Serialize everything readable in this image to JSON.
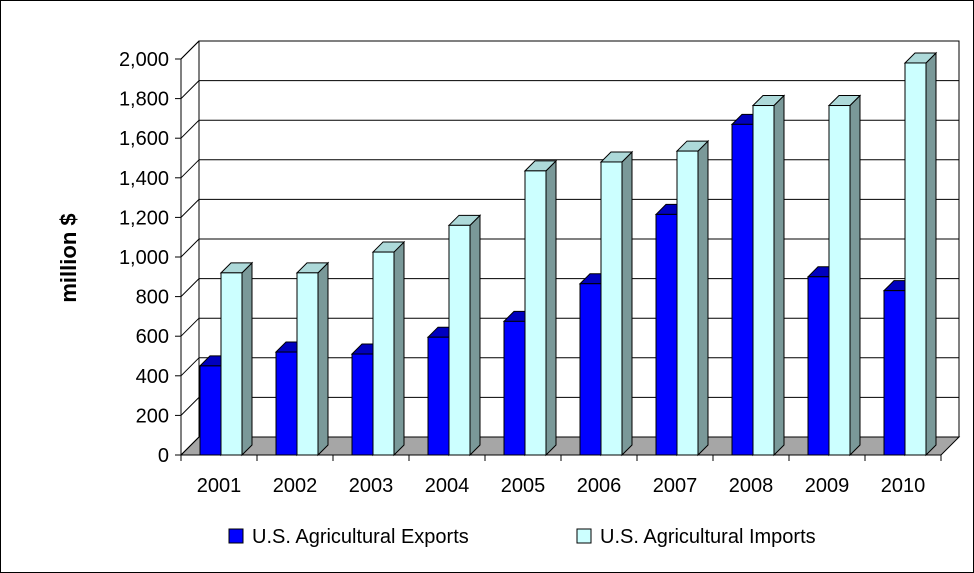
{
  "chart_data": {
    "type": "bar",
    "title": "",
    "xlabel": "",
    "ylabel": "million $",
    "ylim": [
      0,
      2000
    ],
    "y_ticks": [
      0,
      200,
      400,
      600,
      800,
      1000,
      1200,
      1400,
      1600,
      1800,
      2000
    ],
    "y_tick_labels": [
      "0",
      "200",
      "400",
      "600",
      "800",
      "1,000",
      "1,200",
      "1,400",
      "1,600",
      "1,800",
      "2,000"
    ],
    "grid": true,
    "legend_position": "bottom",
    "categories": [
      "2001",
      "2002",
      "2003",
      "2004",
      "2005",
      "2006",
      "2007",
      "2008",
      "2009",
      "2010"
    ],
    "series": [
      {
        "name": "U.S. Agricultural Exports",
        "color": "#0000ff",
        "values": [
          450,
          520,
          510,
          595,
          675,
          865,
          1215,
          1670,
          900,
          830
        ]
      },
      {
        "name": "U.S. Agricultural Imports",
        "color": "#ccffff",
        "values": [
          920,
          920,
          1025,
          1160,
          1435,
          1480,
          1535,
          1765,
          1765,
          1980
        ]
      }
    ]
  }
}
